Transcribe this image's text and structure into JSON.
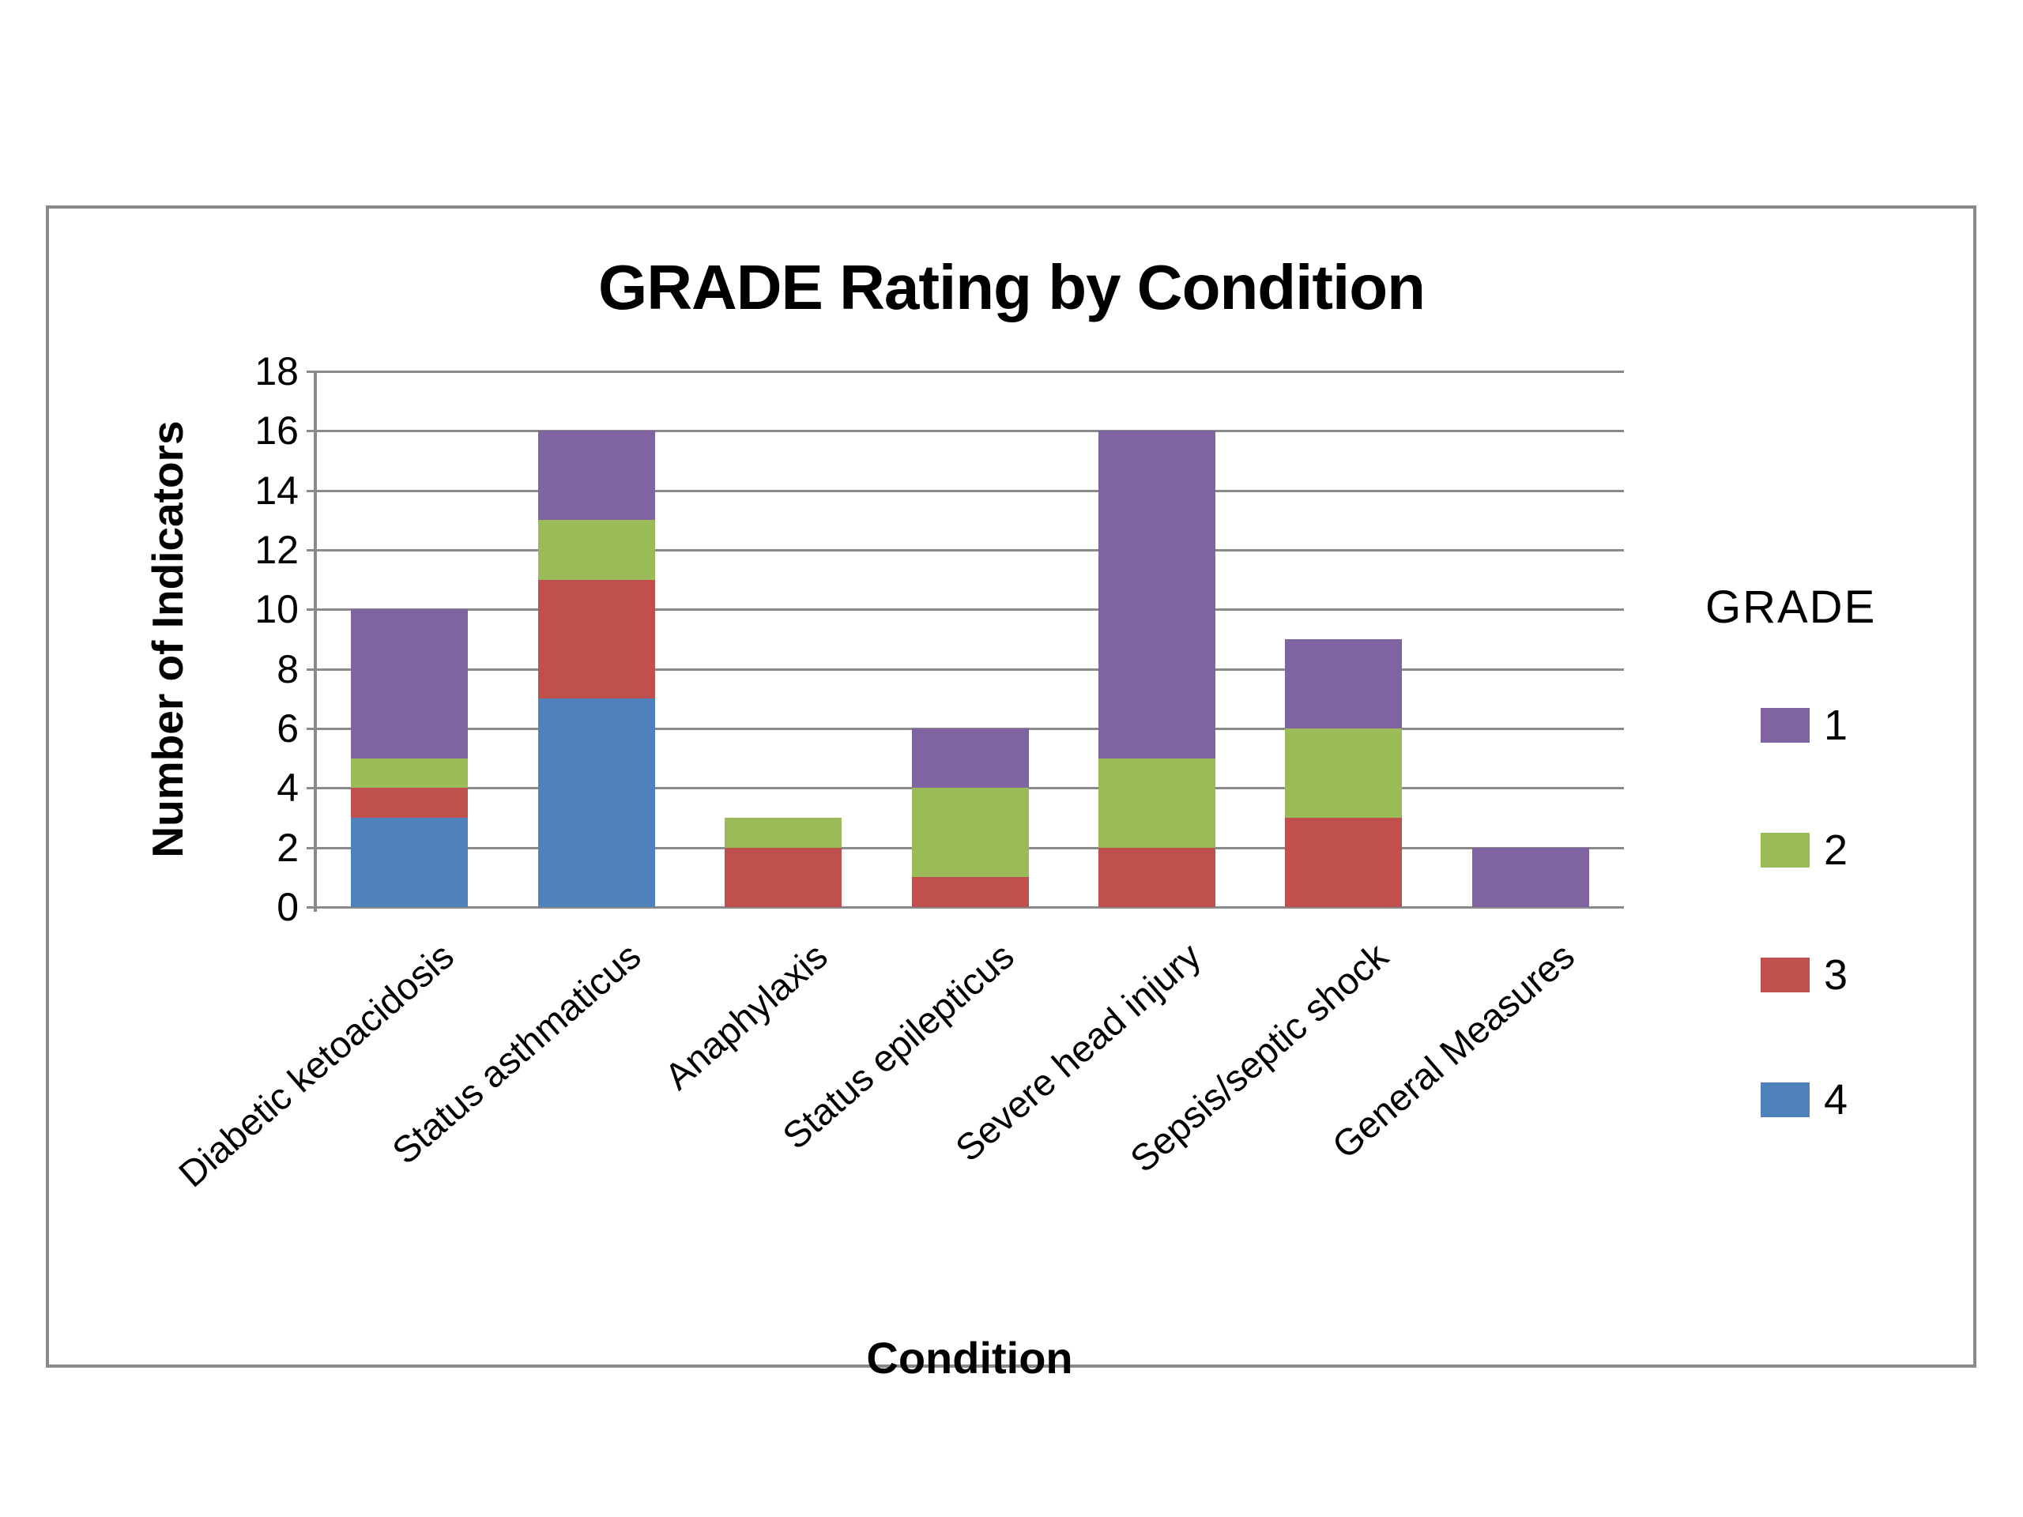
{
  "chart_data": {
    "type": "bar",
    "stacked": true,
    "title": "GRADE Rating by Condition",
    "xlabel": "Condition",
    "ylabel": "Number of Indicators",
    "legend_title": "GRADE",
    "legend_position": "right",
    "grid": true,
    "ylim": [
      0,
      18
    ],
    "ytick_step": 2,
    "categories": [
      "Diabetic ketoacidosis",
      "Status asthmaticus",
      "Anaphylaxis",
      "Status epilepticus",
      "Severe head injury",
      "Sepsis/septic shock",
      "General Measures"
    ],
    "series": [
      {
        "name": "1",
        "color": "#8064A2",
        "values": [
          5,
          3,
          0,
          2,
          11,
          3,
          2
        ]
      },
      {
        "name": "2",
        "color": "#9BBB59",
        "values": [
          1,
          2,
          1,
          3,
          3,
          3,
          0
        ]
      },
      {
        "name": "3",
        "color": "#C0504D",
        "values": [
          1,
          4,
          2,
          1,
          2,
          3,
          0
        ]
      },
      {
        "name": "4",
        "color": "#4F81BD",
        "values": [
          3,
          7,
          0,
          0,
          0,
          0,
          0
        ]
      }
    ],
    "stack_order_bottom_to_top": [
      "4",
      "3",
      "2",
      "1"
    ],
    "totals": [
      10,
      16,
      3,
      6,
      16,
      9,
      2
    ]
  },
  "style": {
    "gridline_color": "#8a8a8a",
    "frame_border_color": "#898989",
    "background_color": "#ffffff",
    "text_color": "#000000"
  }
}
